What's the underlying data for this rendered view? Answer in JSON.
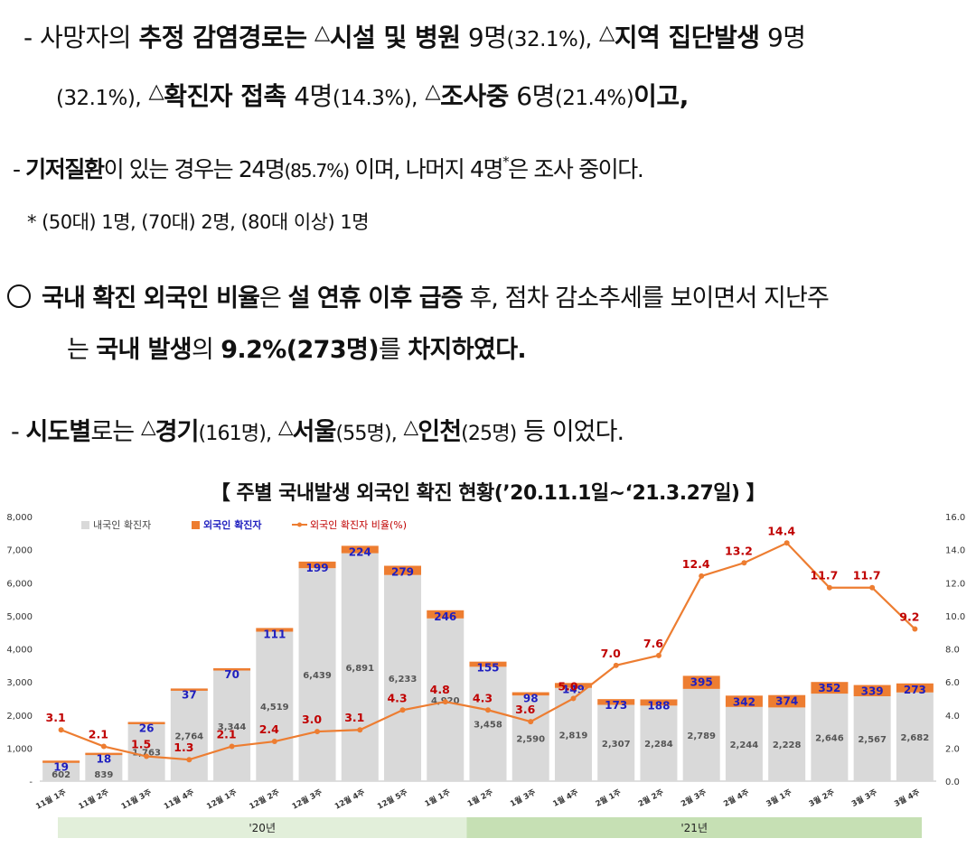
{
  "text": {
    "line1": {
      "dash": "-",
      "p1": "사망자의",
      "p2": "추정 감염경로는",
      "p3a": "시설 및 병원",
      "p3b": " 9명",
      "p3c": "(32.1%),",
      "p4a": "지역 집단발생",
      "p4b": " 9명"
    },
    "line2": {
      "p1": "(32.1%),",
      "p2a": "확진자 접촉",
      "p2b": " 4명",
      "p2c": "(14.3%),",
      "p3a": "조사중",
      "p3b": " 6명",
      "p3c": "(21.4%)",
      "p4": "이고,"
    },
    "line3": {
      "dash": "-",
      "p1": "기저질환",
      "p2": "이 있는 경우는 24명",
      "p3": "(85.7%)",
      "p4": " 이며, 나머지 4명",
      "star": "*",
      "p5": "은 조사 중이다."
    },
    "line4": "* (50대) 1명, (70대) 2명, (80대 이상) 1명",
    "line5": {
      "p1": "국내 확진 외국인 비율",
      "p2": "은 ",
      "p3": "설 연휴 이후 급증",
      "p4": " 후, 점차 감소추세를 보이면서 지난주"
    },
    "line6": {
      "p1": "는 ",
      "p2": "국내 발생",
      "p3": "의 ",
      "p4": "9.2%(273명)",
      "p5": "를 ",
      "p6": "차지하였다."
    },
    "line7": {
      "dash": "-",
      "p1": "시도별",
      "p2": "로는",
      "p3a": "경기",
      "p3b": "(161명),",
      "p4a": "서울",
      "p4b": "(55명),",
      "p5a": "인천",
      "p5b": "(25명)",
      "p6": " 등 이었다."
    },
    "triangle": "△"
  },
  "chart_data": {
    "type": "bar",
    "title": "【 주별 국내발생 외국인 확진 현황(’20.11.1일~‘21.3.27일) 】",
    "categories": [
      "11월 1주",
      "11월 2주",
      "11월 3주",
      "11월 4주",
      "12월 1주",
      "12월 2주",
      "12월 3주",
      "12월 4주",
      "12월 5주",
      "1월 1주",
      "1월 2주",
      "1월 3주",
      "1월 4주",
      "2월 1주",
      "2월 2주",
      "2월 3주",
      "2월 4주",
      "3월 1주",
      "3월 2주",
      "3월 3주",
      "3월 4주"
    ],
    "series": [
      {
        "name": "내국인 확진자",
        "type": "bar",
        "stack": "total",
        "values": [
          602,
          839,
          1763,
          2764,
          3344,
          4519,
          6439,
          6891,
          6233,
          4920,
          3458,
          2590,
          2819,
          2307,
          2284,
          2789,
          2244,
          2228,
          2646,
          2567,
          2682
        ]
      },
      {
        "name": "외국인 확진자",
        "type": "bar",
        "stack": "total",
        "values": [
          19,
          18,
          26,
          37,
          70,
          111,
          199,
          224,
          279,
          246,
          155,
          98,
          149,
          173,
          188,
          395,
          342,
          374,
          352,
          339,
          273
        ]
      },
      {
        "name": "외국인 확진자 비율(%)",
        "type": "line",
        "axis": "right",
        "values": [
          3.1,
          2.1,
          1.5,
          1.3,
          2.1,
          2.4,
          3.0,
          3.1,
          4.3,
          4.8,
          4.3,
          3.6,
          5.0,
          7.0,
          7.6,
          12.4,
          13.2,
          14.4,
          11.7,
          11.7,
          9.2
        ]
      }
    ],
    "yleft": {
      "ticks": [
        "-",
        "1,000",
        "2,000",
        "3,000",
        "4,000",
        "5,000",
        "6,000",
        "7,000",
        "8,000"
      ],
      "ylim": [
        0,
        8000
      ]
    },
    "yright": {
      "ticks": [
        "0.0",
        "2.0",
        "4.0",
        "6.0",
        "8.0",
        "10.0",
        "12.0",
        "14.0",
        "16.0"
      ],
      "ylim": [
        0,
        16
      ]
    },
    "year_bands": [
      {
        "label": "'20년",
        "from_index": 0,
        "to_index": 9
      },
      {
        "label": "'21년",
        "from_index": 10,
        "to_index": 20
      }
    ],
    "colors": {
      "domestic": "#d9d9d9",
      "foreign": "#ed7d31",
      "ratio_line": "#ed7d31",
      "foreign_label": "#1f1fbf",
      "ratio_label": "#c00000",
      "band_2020": "#e2efda",
      "band_2021": "#c6e0b4"
    },
    "legend_position": "top-left"
  }
}
